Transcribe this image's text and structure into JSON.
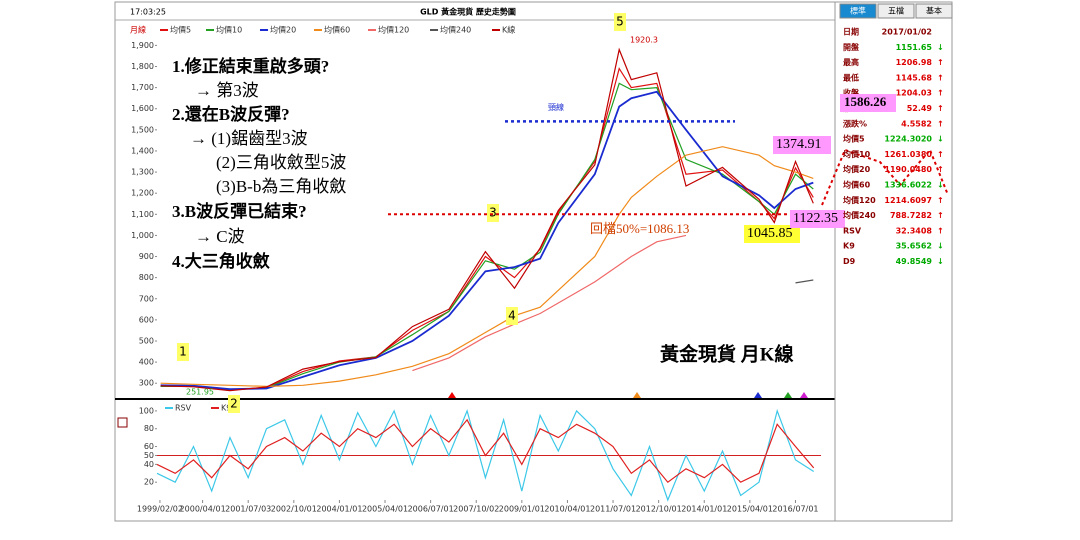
{
  "header": {
    "time": "17:03:25",
    "title": "GLD 黃金現貨 歷史走勢圖",
    "period": "月線"
  },
  "chart_data": [
    {
      "type": "line",
      "x": [
        1999.1,
        2000.0,
        2001.0,
        2002.0,
        2003.0,
        2004.0,
        2005.0,
        2006.0,
        2007.0,
        2008.0,
        2008.8,
        2009.5,
        2010.0,
        2011.0,
        2011.67,
        2012.0,
        2012.7,
        2013.5,
        2014.5,
        2015.5,
        2015.92,
        2016.5,
        2016.99
      ],
      "xlim": [
        1999.0,
        2017.2
      ],
      "ylim": [
        230,
        1935
      ],
      "yticks": [
        300,
        400,
        500,
        600,
        700,
        800,
        900,
        {
          "value": 1000,
          "label": "1,000"
        },
        {
          "value": 1100,
          "label": "1,100"
        },
        {
          "value": 1200,
          "label": "1,200"
        },
        {
          "value": 1300,
          "label": "1,300"
        },
        {
          "value": 1400,
          "label": "1,400"
        },
        {
          "value": 1500,
          "label": "1,500"
        },
        {
          "value": 1600,
          "label": "1,600"
        },
        {
          "value": 1700,
          "label": "1,700"
        },
        {
          "value": 1800,
          "label": "1,800"
        },
        {
          "value": 1900,
          "label": "1,900"
        }
      ],
      "grid": false,
      "series": [
        {
          "name": "均價5",
          "color": "#e01010",
          "values": [
            285,
            285,
            268,
            280,
            355,
            405,
            425,
            550,
            640,
            900,
            800,
            935,
            1110,
            1350,
            1790,
            1700,
            1720,
            1290,
            1310,
            1160,
            1080,
            1320,
            1180
          ]
        },
        {
          "name": "均價10",
          "color": "#22a022",
          "values": [
            285,
            287,
            270,
            278,
            345,
            400,
            425,
            530,
            640,
            880,
            840,
            920,
            1100,
            1360,
            1720,
            1690,
            1700,
            1360,
            1290,
            1160,
            1100,
            1290,
            1220
          ]
        },
        {
          "name": "均價20",
          "color": "#1a2bd0",
          "values": [
            290,
            288,
            272,
            275,
            330,
            385,
            420,
            500,
            620,
            830,
            850,
            890,
            1060,
            1290,
            1610,
            1650,
            1680,
            1500,
            1280,
            1190,
            1130,
            1220,
            1250
          ]
        },
        {
          "name": "均價60",
          "color": "#f08a1a",
          "values": [
            300,
            295,
            290,
            285,
            290,
            310,
            340,
            380,
            440,
            540,
            620,
            660,
            740,
            900,
            1100,
            1180,
            1280,
            1380,
            1420,
            1380,
            1330,
            1300,
            1270
          ]
        },
        {
          "name": "均價120",
          "color": "#f06868",
          "values": [
            null,
            null,
            null,
            null,
            null,
            null,
            null,
            360,
            420,
            520,
            580,
            630,
            680,
            780,
            860,
            900,
            970,
            1000,
            null,
            null,
            null,
            null,
            null
          ]
        },
        {
          "name": "均價240",
          "color": "#555555",
          "values": [
            null,
            null,
            null,
            null,
            null,
            null,
            null,
            null,
            null,
            null,
            null,
            null,
            null,
            null,
            null,
            null,
            null,
            null,
            null,
            null,
            null,
            775,
            789
          ]
        },
        {
          "name": "K線",
          "color": "#c00000",
          "values": [
            288,
            283,
            265,
            282,
            367,
            402,
            422,
            568,
            650,
            923,
            750,
            940,
            1118,
            1334,
            1880,
            1738,
            1770,
            1234,
            1322,
            1171,
            1061,
            1350,
            1152
          ]
        }
      ]
    },
    {
      "type": "line",
      "x": [
        1999.0,
        1999.5,
        2000.0,
        2000.5,
        2001.0,
        2001.5,
        2002.0,
        2002.5,
        2003.0,
        2003.5,
        2004.0,
        2004.5,
        2005.0,
        2005.5,
        2006.0,
        2006.5,
        2007.0,
        2007.5,
        2008.0,
        2008.5,
        2009.0,
        2009.5,
        2010.0,
        2010.5,
        2011.0,
        2011.5,
        2012.0,
        2012.5,
        2013.0,
        2013.5,
        2014.0,
        2014.5,
        2015.0,
        2015.5,
        2016.0,
        2016.5,
        2017.0
      ],
      "xlim": [
        1999.0,
        2017.2
      ],
      "ylim": [
        0,
        110
      ],
      "yticks": [
        20,
        40,
        50,
        60,
        80,
        100
      ],
      "xticks": [
        {
          "value": 1999.08,
          "label": "1999/02/02"
        },
        {
          "value": 2000.25,
          "label": "2000/04/01"
        },
        {
          "value": 2001.5,
          "label": "2001/07/03"
        },
        {
          "value": 2002.75,
          "label": "2002/10/01"
        },
        {
          "value": 2004.0,
          "label": "2004/01/01"
        },
        {
          "value": 2005.25,
          "label": "2005/04/01"
        },
        {
          "value": 2006.5,
          "label": "2006/07/01"
        },
        {
          "value": 2007.75,
          "label": "2007/10/02"
        },
        {
          "value": 2009.0,
          "label": "2009/01/01"
        },
        {
          "value": 2010.25,
          "label": "2010/04/01"
        },
        {
          "value": 2011.5,
          "label": "2011/07/01"
        },
        {
          "value": 2012.75,
          "label": "2012/10/01"
        },
        {
          "value": 2014.0,
          "label": "2014/01/01"
        },
        {
          "value": 2015.25,
          "label": "2015/04/01"
        },
        {
          "value": 2016.5,
          "label": "2016/07/01"
        }
      ],
      "series": [
        {
          "name": "RSV",
          "color": "#3cc8e8",
          "values": [
            30,
            20,
            60,
            10,
            70,
            25,
            80,
            90,
            40,
            95,
            45,
            98,
            60,
            100,
            40,
            95,
            50,
            100,
            25,
            90,
            10,
            95,
            55,
            100,
            80,
            35,
            5,
            60,
            0,
            50,
            10,
            55,
            5,
            20,
            100,
            45,
            32
          ]
        },
        {
          "name": "K9",
          "color": "#e02020",
          "values": [
            40,
            30,
            45,
            25,
            50,
            35,
            60,
            70,
            55,
            75,
            60,
            80,
            70,
            85,
            60,
            80,
            65,
            90,
            50,
            75,
            40,
            80,
            70,
            85,
            75,
            60,
            30,
            45,
            20,
            35,
            25,
            40,
            20,
            30,
            85,
            60,
            36
          ]
        }
      ]
    }
  ],
  "annotations": {
    "notes": [
      "1.修正結束重啟多頭?",
      "→ 第3波",
      "2.還在B波反彈?",
      "→ (1)鋸齒型3波",
      "(2)三角收斂型5波",
      "(3)B-b為三角收斂",
      "3.B波反彈已結束?",
      "→ C波",
      "4.大三角收斂"
    ],
    "waves": [
      "1",
      "2",
      "3",
      "4",
      "5"
    ],
    "neckline": {
      "label": "頸線",
      "value": 1540
    },
    "support": {
      "label": "回檔50%=1086.13",
      "value": 1100
    },
    "peak": 1920.3,
    "bottom": 251.95,
    "recent_high": 1374.91,
    "recent_low": 1045.85,
    "last": 1122.35,
    "projection": 1586.26,
    "caption": "黃金現貨 月K線"
  },
  "sidebar": {
    "tabs": [
      "標準",
      "五檔",
      "基本"
    ],
    "rows": [
      {
        "label": "日期",
        "value": "2017/01/02"
      },
      {
        "label": "開盤",
        "value": "1151.65",
        "arrow": "↓"
      },
      {
        "label": "最高",
        "value": "1206.98",
        "arrow": "↑"
      },
      {
        "label": "最低",
        "value": "1145.68",
        "arrow": "↑"
      },
      {
        "label": "收盤",
        "value": "1204.03",
        "arrow": "↑"
      },
      {
        "label": "漲跌",
        "value": "52.49",
        "arrow": "↑"
      },
      {
        "label": "漲跌%",
        "value": "4.5582",
        "arrow": "↑"
      },
      {
        "label": "均價5",
        "value": "1224.3020",
        "arrow": "↓"
      },
      {
        "label": "均價10",
        "value": "1261.0380",
        "arrow": "↑"
      },
      {
        "label": "均價20",
        "value": "1190.0480",
        "arrow": "↑"
      },
      {
        "label": "均價60",
        "value": "1336.6022",
        "arrow": "↓"
      },
      {
        "label": "均價120",
        "value": "1214.6097",
        "arrow": "↑"
      },
      {
        "label": "均價240",
        "value": "788.7282",
        "arrow": "↑"
      },
      {
        "label": "RSV",
        "value": "32.3408",
        "arrow": "↑"
      },
      {
        "label": "K9",
        "value": "35.6562",
        "arrow": "↓"
      },
      {
        "label": "D9",
        "value": "49.8549",
        "arrow": "↓"
      }
    ]
  }
}
